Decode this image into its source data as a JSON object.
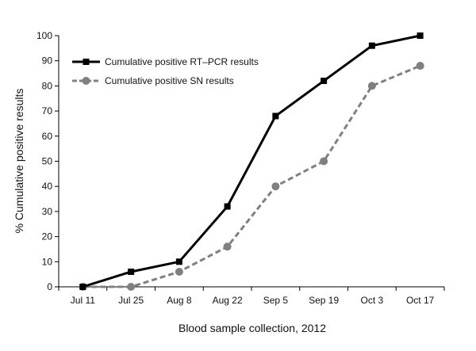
{
  "chart_data": {
    "type": "line",
    "title": "",
    "xlabel": "Blood sample collection, 2012",
    "ylabel": "% Cumulative positive results",
    "categories": [
      "Jul 11",
      "Jul 25",
      "Aug 8",
      "Aug 22",
      "Sep 5",
      "Sep 19",
      "Oct 3",
      "Oct 17"
    ],
    "ylim": [
      0,
      100
    ],
    "yticks": [
      0,
      10,
      20,
      30,
      40,
      50,
      60,
      70,
      80,
      90,
      100
    ],
    "grid": false,
    "legend_position": "top-left",
    "series": [
      {
        "name": "Cumulative positive RT–PCR results",
        "values": [
          0,
          6,
          10,
          32,
          68,
          82,
          96,
          100
        ],
        "color": "#000000",
        "line_style": "solid",
        "marker": "square"
      },
      {
        "name": "Cumulative positive SN results",
        "values": [
          0,
          0,
          6,
          16,
          40,
          50,
          80,
          88
        ],
        "color": "#808080",
        "line_style": "dashed",
        "marker": "circle"
      }
    ]
  }
}
